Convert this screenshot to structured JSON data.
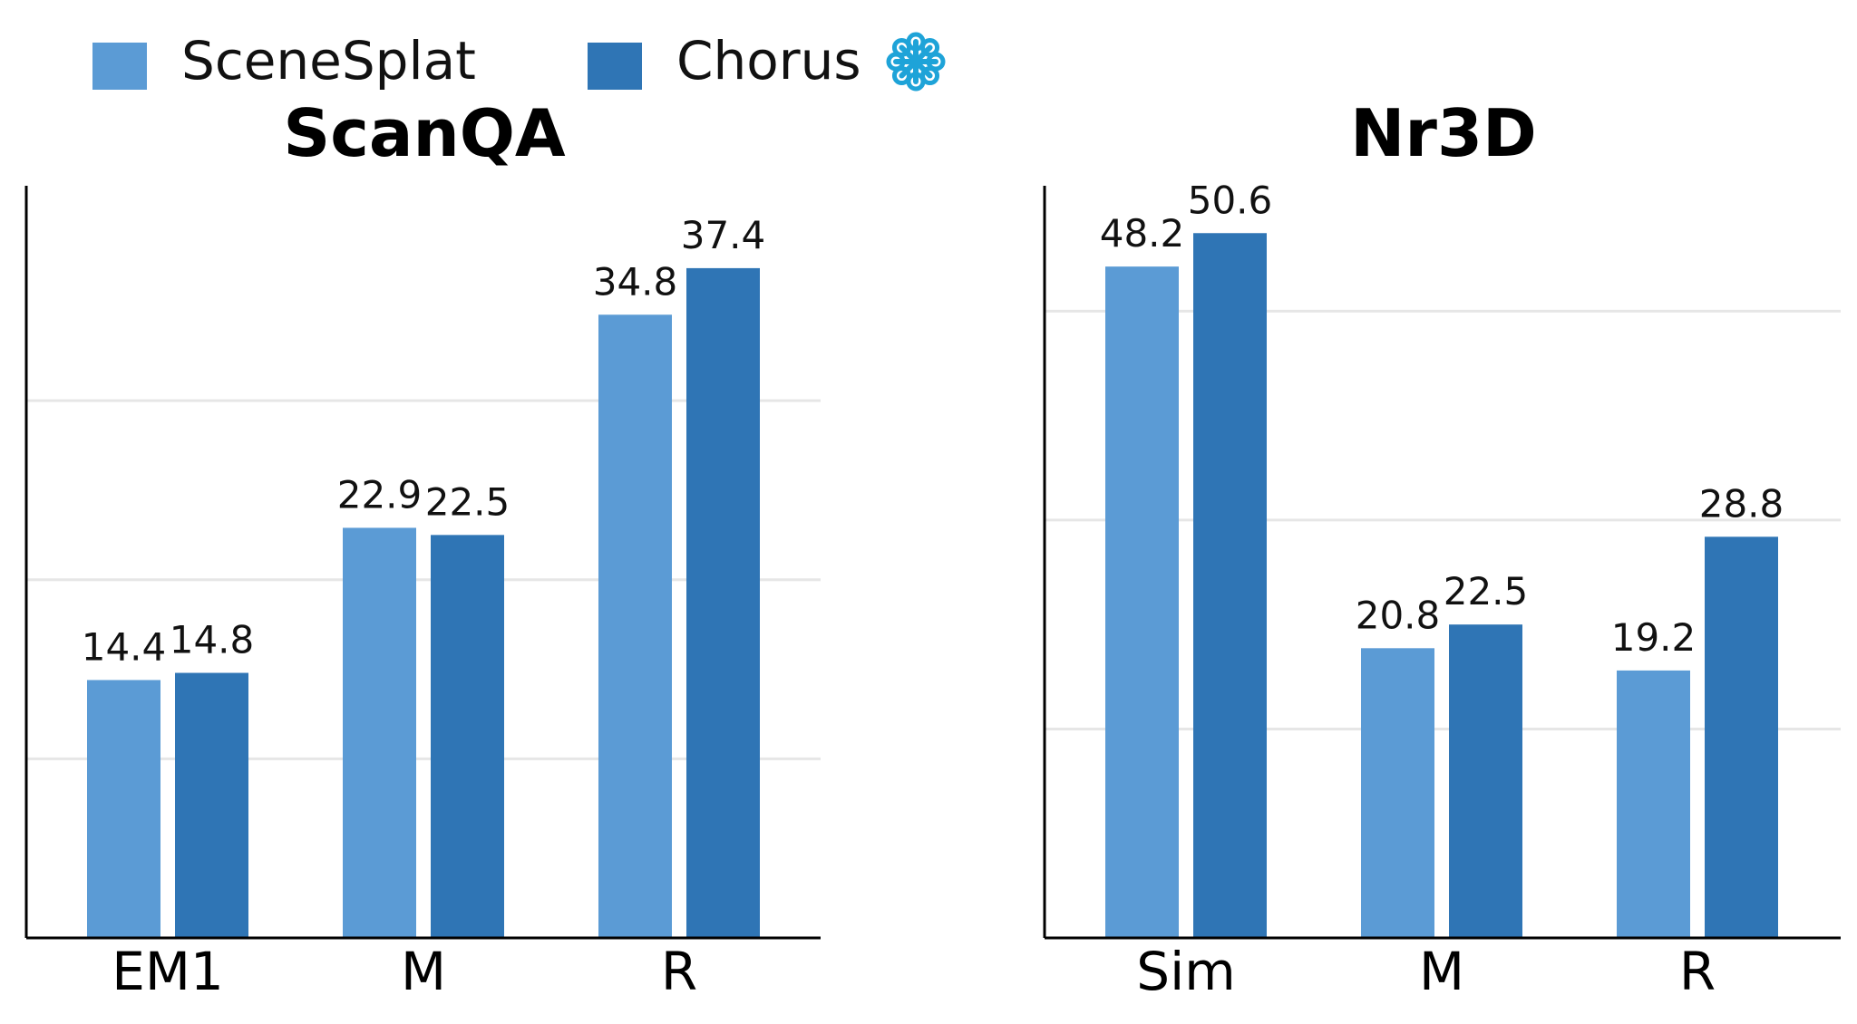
{
  "legend": {
    "position": "top-left",
    "items": [
      {
        "label": "SceneSplat",
        "color": "#5b9bd5",
        "icon": "none"
      },
      {
        "label": "Chorus",
        "color": "#2f75b5",
        "icon": "snowflake-icon",
        "icon_color": "#1ea3d8"
      }
    ]
  },
  "chart_data": [
    {
      "type": "bar",
      "title": "ScanQA",
      "categories": [
        "EM1",
        "M",
        "R"
      ],
      "series": [
        {
          "name": "SceneSplat",
          "values": [
            14.4,
            22.9,
            34.8
          ],
          "color": "#5b9bd5"
        },
        {
          "name": "Chorus",
          "values": [
            14.8,
            22.5,
            37.4
          ],
          "color": "#2f75b5"
        }
      ],
      "data_labels": [
        [
          "14.4",
          "22.9",
          "34.8"
        ],
        [
          "14.8",
          "22.5",
          "37.4"
        ]
      ],
      "xlabel": "",
      "ylabel": "",
      "ylim": [
        0,
        42
      ],
      "grid_lines": [
        10,
        20,
        30
      ],
      "grid": "horizontal",
      "y_tick_labels_visible": false
    },
    {
      "type": "bar",
      "title": "Nr3D",
      "categories": [
        "Sim",
        "M",
        "R"
      ],
      "series": [
        {
          "name": "SceneSplat",
          "values": [
            48.2,
            20.8,
            19.2
          ],
          "color": "#5b9bd5"
        },
        {
          "name": "Chorus",
          "values": [
            50.6,
            22.5,
            28.8
          ],
          "color": "#2f75b5"
        }
      ],
      "data_labels": [
        [
          "48.2",
          "20.8",
          "19.2"
        ],
        [
          "50.6",
          "22.5",
          "28.8"
        ]
      ],
      "xlabel": "",
      "ylabel": "",
      "ylim": [
        0,
        54
      ],
      "grid_lines": [
        15,
        30,
        45
      ],
      "grid": "horizontal",
      "y_tick_labels_visible": false
    }
  ]
}
